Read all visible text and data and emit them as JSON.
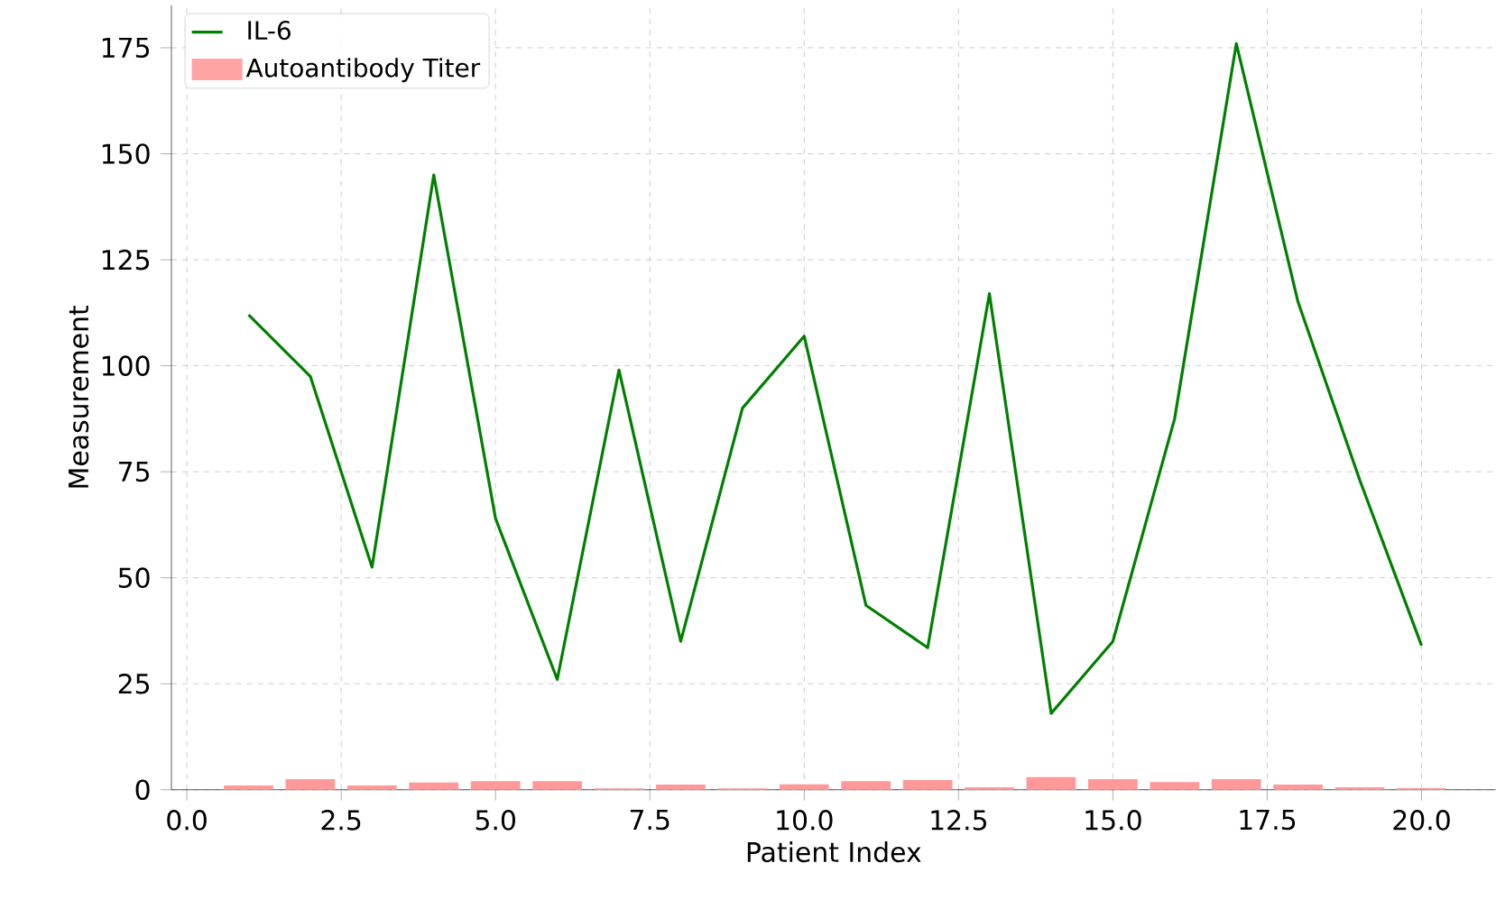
{
  "chart_data": {
    "type": "line",
    "xlabel": "Patient Index",
    "ylabel": "Measurement",
    "x": [
      1,
      2,
      3,
      4,
      5,
      6,
      7,
      8,
      9,
      10,
      11,
      12,
      13,
      14,
      15,
      16,
      17,
      18,
      19,
      20
    ],
    "series": [
      {
        "name": "IL-6",
        "color": "#008000",
        "values": [
          112,
          97.5,
          52.5,
          145,
          64,
          26,
          99,
          35,
          90,
          107,
          43.5,
          33.5,
          117,
          18,
          35,
          87.5,
          176,
          115,
          73,
          34
        ]
      },
      {
        "name": "Autoantibody Titer",
        "type": "bar",
        "color": "#ff9999",
        "values": [
          1,
          2.5,
          1,
          1.7,
          2,
          2,
          0.3,
          1.2,
          0.3,
          1.3,
          2,
          2.3,
          0.6,
          3,
          2.5,
          1.8,
          2.5,
          1.2,
          0.6,
          0.4
        ]
      }
    ],
    "xlim": [
      -0.25,
      21.2
    ],
    "ylim": [
      0,
      185
    ],
    "xticks": [
      {
        "value": 0,
        "label": "0.0"
      },
      {
        "value": 2.5,
        "label": "2.5"
      },
      {
        "value": 5,
        "label": "5.0"
      },
      {
        "value": 7.5,
        "label": "7.5"
      },
      {
        "value": 10,
        "label": "10.0"
      },
      {
        "value": 12.5,
        "label": "12.5"
      },
      {
        "value": 15,
        "label": "15.0"
      },
      {
        "value": 17.5,
        "label": "17.5"
      },
      {
        "value": 20,
        "label": "20.0"
      }
    ],
    "yticks": [
      0,
      25,
      50,
      75,
      100,
      125,
      150,
      175
    ],
    "grid": true,
    "legend": "top left"
  }
}
